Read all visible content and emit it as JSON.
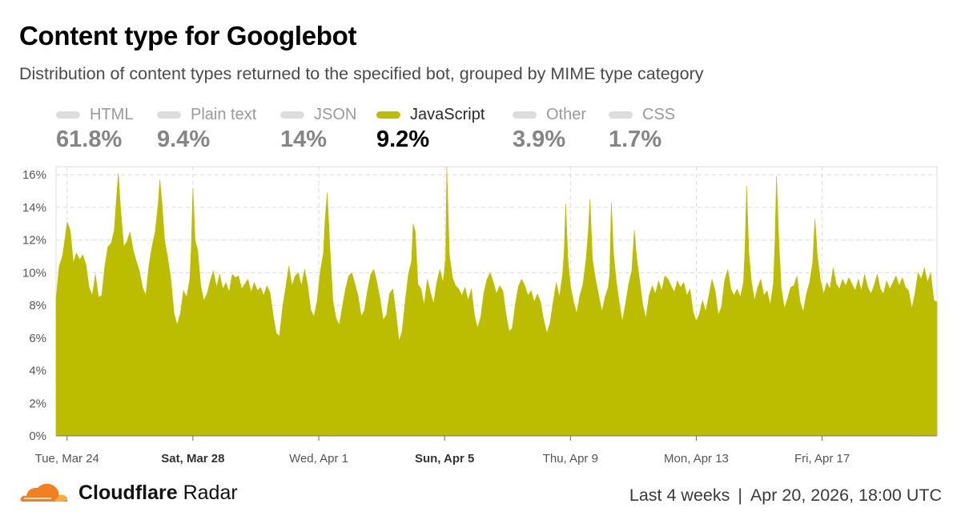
{
  "header": {
    "title": "Content type for Googlebot",
    "subtitle": "Distribution of content types returned to the specified bot, grouped by MIME type category"
  },
  "legend": [
    {
      "label": "HTML",
      "value": "61.8%",
      "active": false
    },
    {
      "label": "Plain text",
      "value": "9.4%",
      "active": false
    },
    {
      "label": "JSON",
      "value": "14%",
      "active": false
    },
    {
      "label": "JavaScript",
      "value": "9.2%",
      "active": true
    },
    {
      "label": "Other",
      "value": "3.9%",
      "active": false
    },
    {
      "label": "CSS",
      "value": "1.7%",
      "active": false
    }
  ],
  "colors": {
    "accent": "#bdbd00",
    "inactive": "#dddddd",
    "grid": "#dcdcdc",
    "logo": "#f38020"
  },
  "footer": {
    "brand_bold": "Cloudflare",
    "brand_light": "Radar",
    "range": "Last 4 weeks",
    "separator": "|",
    "timestamp": "Apr 20, 2026, 18:00 UTC"
  },
  "chart_data": {
    "type": "area",
    "series": [
      {
        "name": "JavaScript",
        "color": "#bdbd00"
      }
    ],
    "y_ticks": [
      "0%",
      "2%",
      "4%",
      "6%",
      "8%",
      "10%",
      "12%",
      "14%",
      "16%"
    ],
    "ylim": [
      0,
      16.5
    ],
    "x_ticks": [
      {
        "label": "Tue, Mar 24",
        "day": 0.35,
        "bold": false
      },
      {
        "label": "Sat, Mar 28",
        "day": 4.35,
        "bold": true
      },
      {
        "label": "Wed, Apr 1",
        "day": 8.35,
        "bold": false
      },
      {
        "label": "Sun, Apr 5",
        "day": 12.35,
        "bold": true
      },
      {
        "label": "Thu, Apr 9",
        "day": 16.35,
        "bold": false
      },
      {
        "label": "Mon, Apr 13",
        "day": 20.35,
        "bold": false
      },
      {
        "label": "Fri, Apr 17",
        "day": 24.35,
        "bold": false
      }
    ],
    "x_range_days": [
      0,
      28
    ],
    "points": [
      [
        0.0,
        8.4
      ],
      [
        0.1,
        10.4
      ],
      [
        0.2,
        11.0
      ],
      [
        0.3,
        12.3
      ],
      [
        0.35,
        13.1
      ],
      [
        0.45,
        12.6
      ],
      [
        0.55,
        10.6
      ],
      [
        0.65,
        11.2
      ],
      [
        0.75,
        10.8
      ],
      [
        0.85,
        11.1
      ],
      [
        0.95,
        10.5
      ],
      [
        1.05,
        9.1
      ],
      [
        1.15,
        8.6
      ],
      [
        1.25,
        9.9
      ],
      [
        1.35,
        8.5
      ],
      [
        1.45,
        8.6
      ],
      [
        1.55,
        10.4
      ],
      [
        1.65,
        11.6
      ],
      [
        1.75,
        11.8
      ],
      [
        1.85,
        12.6
      ],
      [
        1.92,
        14.5
      ],
      [
        1.98,
        16.1
      ],
      [
        2.05,
        14.0
      ],
      [
        2.15,
        11.6
      ],
      [
        2.25,
        11.9
      ],
      [
        2.35,
        12.5
      ],
      [
        2.45,
        11.4
      ],
      [
        2.55,
        10.7
      ],
      [
        2.65,
        10.1
      ],
      [
        2.75,
        9.1
      ],
      [
        2.85,
        8.6
      ],
      [
        2.95,
        10.4
      ],
      [
        3.05,
        11.6
      ],
      [
        3.15,
        12.5
      ],
      [
        3.25,
        14.3
      ],
      [
        3.3,
        15.7
      ],
      [
        3.37,
        14.2
      ],
      [
        3.45,
        12.0
      ],
      [
        3.55,
        10.9
      ],
      [
        3.65,
        9.6
      ],
      [
        3.75,
        7.5
      ],
      [
        3.85,
        6.8
      ],
      [
        3.95,
        7.5
      ],
      [
        4.05,
        8.9
      ],
      [
        4.15,
        8.5
      ],
      [
        4.25,
        9.6
      ],
      [
        4.3,
        11.6
      ],
      [
        4.35,
        15.2
      ],
      [
        4.42,
        12.0
      ],
      [
        4.5,
        11.4
      ],
      [
        4.6,
        9.2
      ],
      [
        4.7,
        8.3
      ],
      [
        4.8,
        8.7
      ],
      [
        4.9,
        9.5
      ],
      [
        5.0,
        10.1
      ],
      [
        5.1,
        9.1
      ],
      [
        5.2,
        9.9
      ],
      [
        5.3,
        9.0
      ],
      [
        5.4,
        9.4
      ],
      [
        5.5,
        8.8
      ],
      [
        5.6,
        9.9
      ],
      [
        5.7,
        9.7
      ],
      [
        5.8,
        9.8
      ],
      [
        5.9,
        9.0
      ],
      [
        6.0,
        9.3
      ],
      [
        6.1,
        9.6
      ],
      [
        6.2,
        8.8
      ],
      [
        6.3,
        9.4
      ],
      [
        6.4,
        8.9
      ],
      [
        6.5,
        9.1
      ],
      [
        6.6,
        8.6
      ],
      [
        6.7,
        9.2
      ],
      [
        6.8,
        8.8
      ],
      [
        6.9,
        7.4
      ],
      [
        7.0,
        6.3
      ],
      [
        7.1,
        6.1
      ],
      [
        7.2,
        7.9
      ],
      [
        7.3,
        9.1
      ],
      [
        7.4,
        10.4
      ],
      [
        7.5,
        9.2
      ],
      [
        7.6,
        9.8
      ],
      [
        7.7,
        10.0
      ],
      [
        7.8,
        9.2
      ],
      [
        7.9,
        10.2
      ],
      [
        8.0,
        9.2
      ],
      [
        8.1,
        7.7
      ],
      [
        8.2,
        7.3
      ],
      [
        8.3,
        8.3
      ],
      [
        8.4,
        10.1
      ],
      [
        8.5,
        11.2
      ],
      [
        8.55,
        13.2
      ],
      [
        8.62,
        14.9
      ],
      [
        8.7,
        11.7
      ],
      [
        8.8,
        8.3
      ],
      [
        8.9,
        7.2
      ],
      [
        9.0,
        6.8
      ],
      [
        9.1,
        7.9
      ],
      [
        9.2,
        9.0
      ],
      [
        9.3,
        9.8
      ],
      [
        9.4,
        10.0
      ],
      [
        9.5,
        9.3
      ],
      [
        9.6,
        8.6
      ],
      [
        9.7,
        7.3
      ],
      [
        9.8,
        7.7
      ],
      [
        9.9,
        8.9
      ],
      [
        10.0,
        9.9
      ],
      [
        10.1,
        10.2
      ],
      [
        10.2,
        9.4
      ],
      [
        10.3,
        8.4
      ],
      [
        10.4,
        7.1
      ],
      [
        10.5,
        7.4
      ],
      [
        10.6,
        8.7
      ],
      [
        10.7,
        9.0
      ],
      [
        10.8,
        7.6
      ],
      [
        10.9,
        5.8
      ],
      [
        11.0,
        6.4
      ],
      [
        11.1,
        8.3
      ],
      [
        11.2,
        9.9
      ],
      [
        11.3,
        10.7
      ],
      [
        11.35,
        13.0
      ],
      [
        11.42,
        12.5
      ],
      [
        11.5,
        9.3
      ],
      [
        11.6,
        9.0
      ],
      [
        11.7,
        8.0
      ],
      [
        11.8,
        9.6
      ],
      [
        11.9,
        8.8
      ],
      [
        12.0,
        8.1
      ],
      [
        12.1,
        9.4
      ],
      [
        12.2,
        10.2
      ],
      [
        12.3,
        9.4
      ],
      [
        12.38,
        10.8
      ],
      [
        12.42,
        16.5
      ],
      [
        12.5,
        11.1
      ],
      [
        12.6,
        9.7
      ],
      [
        12.7,
        9.2
      ],
      [
        12.8,
        9.0
      ],
      [
        12.9,
        8.6
      ],
      [
        13.0,
        9.1
      ],
      [
        13.1,
        8.3
      ],
      [
        13.2,
        9.0
      ],
      [
        13.3,
        7.4
      ],
      [
        13.4,
        6.6
      ],
      [
        13.5,
        7.3
      ],
      [
        13.6,
        8.8
      ],
      [
        13.7,
        9.6
      ],
      [
        13.8,
        10.0
      ],
      [
        13.9,
        9.4
      ],
      [
        14.0,
        8.7
      ],
      [
        14.1,
        9.2
      ],
      [
        14.2,
        8.9
      ],
      [
        14.3,
        7.5
      ],
      [
        14.4,
        6.4
      ],
      [
        14.5,
        6.6
      ],
      [
        14.6,
        8.1
      ],
      [
        14.7,
        9.2
      ],
      [
        14.8,
        9.6
      ],
      [
        14.9,
        9.2
      ],
      [
        15.0,
        8.6
      ],
      [
        15.1,
        8.9
      ],
      [
        15.2,
        8.2
      ],
      [
        15.3,
        8.7
      ],
      [
        15.4,
        8.2
      ],
      [
        15.5,
        7.1
      ],
      [
        15.6,
        6.3
      ],
      [
        15.7,
        6.9
      ],
      [
        15.8,
        8.2
      ],
      [
        15.9,
        9.4
      ],
      [
        16.0,
        8.5
      ],
      [
        16.1,
        9.9
      ],
      [
        16.15,
        11.3
      ],
      [
        16.2,
        14.2
      ],
      [
        16.27,
        10.8
      ],
      [
        16.35,
        9.2
      ],
      [
        16.45,
        8.2
      ],
      [
        16.55,
        7.5
      ],
      [
        16.65,
        8.6
      ],
      [
        16.75,
        9.3
      ],
      [
        16.85,
        10.9
      ],
      [
        16.92,
        12.6
      ],
      [
        16.97,
        14.5
      ],
      [
        17.05,
        10.8
      ],
      [
        17.15,
        9.6
      ],
      [
        17.25,
        8.6
      ],
      [
        17.35,
        7.6
      ],
      [
        17.45,
        8.5
      ],
      [
        17.55,
        9.1
      ],
      [
        17.6,
        9.9
      ],
      [
        17.65,
        14.3
      ],
      [
        17.72,
        11.2
      ],
      [
        17.8,
        9.6
      ],
      [
        17.9,
        8.2
      ],
      [
        18.0,
        7.0
      ],
      [
        18.1,
        8.1
      ],
      [
        18.2,
        9.3
      ],
      [
        18.3,
        10.1
      ],
      [
        18.38,
        12.6
      ],
      [
        18.45,
        11.0
      ],
      [
        18.55,
        9.5
      ],
      [
        18.65,
        8.0
      ],
      [
        18.75,
        7.2
      ],
      [
        18.85,
        8.6
      ],
      [
        18.95,
        9.2
      ],
      [
        19.05,
        8.7
      ],
      [
        19.15,
        9.5
      ],
      [
        19.25,
        8.9
      ],
      [
        19.35,
        9.8
      ],
      [
        19.45,
        9.6
      ],
      [
        19.55,
        9.2
      ],
      [
        19.65,
        8.8
      ],
      [
        19.75,
        9.5
      ],
      [
        19.85,
        9.1
      ],
      [
        19.95,
        9.4
      ],
      [
        20.05,
        8.6
      ],
      [
        20.15,
        9.0
      ],
      [
        20.25,
        7.6
      ],
      [
        20.35,
        7.0
      ],
      [
        20.45,
        7.5
      ],
      [
        20.55,
        8.3
      ],
      [
        20.65,
        7.6
      ],
      [
        20.75,
        8.6
      ],
      [
        20.85,
        9.6
      ],
      [
        20.95,
        8.9
      ],
      [
        21.05,
        7.4
      ],
      [
        21.15,
        7.9
      ],
      [
        21.25,
        9.5
      ],
      [
        21.35,
        10.2
      ],
      [
        21.45,
        9.0
      ],
      [
        21.55,
        8.6
      ],
      [
        21.65,
        9.0
      ],
      [
        21.75,
        8.5
      ],
      [
        21.85,
        9.4
      ],
      [
        21.9,
        11.6
      ],
      [
        21.95,
        15.3
      ],
      [
        22.02,
        11.2
      ],
      [
        22.1,
        9.5
      ],
      [
        22.2,
        8.3
      ],
      [
        22.3,
        9.1
      ],
      [
        22.4,
        9.6
      ],
      [
        22.5,
        8.6
      ],
      [
        22.6,
        8.9
      ],
      [
        22.7,
        8.0
      ],
      [
        22.8,
        9.3
      ],
      [
        22.85,
        11.9
      ],
      [
        22.9,
        15.9
      ],
      [
        22.97,
        12.1
      ],
      [
        23.05,
        9.1
      ],
      [
        23.15,
        7.8
      ],
      [
        23.25,
        8.4
      ],
      [
        23.35,
        9.1
      ],
      [
        23.45,
        9.2
      ],
      [
        23.55,
        9.8
      ],
      [
        23.65,
        8.2
      ],
      [
        23.75,
        7.6
      ],
      [
        23.85,
        8.7
      ],
      [
        23.95,
        9.4
      ],
      [
        24.05,
        10.6
      ],
      [
        24.12,
        13.3
      ],
      [
        24.2,
        11.0
      ],
      [
        24.3,
        9.5
      ],
      [
        24.4,
        8.7
      ],
      [
        24.5,
        9.4
      ],
      [
        24.6,
        9.0
      ],
      [
        24.7,
        10.3
      ],
      [
        24.8,
        9.3
      ],
      [
        24.9,
        9.0
      ],
      [
        25.0,
        9.6
      ],
      [
        25.1,
        9.2
      ],
      [
        25.2,
        9.7
      ],
      [
        25.3,
        9.3
      ],
      [
        25.4,
        8.9
      ],
      [
        25.5,
        9.6
      ],
      [
        25.6,
        8.9
      ],
      [
        25.7,
        9.9
      ],
      [
        25.8,
        9.1
      ],
      [
        25.9,
        8.7
      ],
      [
        26.0,
        9.2
      ],
      [
        26.1,
        9.9
      ],
      [
        26.2,
        9.0
      ],
      [
        26.3,
        8.7
      ],
      [
        26.4,
        9.5
      ],
      [
        26.5,
        9.0
      ],
      [
        26.6,
        9.4
      ],
      [
        26.7,
        9.8
      ],
      [
        26.8,
        9.2
      ],
      [
        26.9,
        9.7
      ],
      [
        27.0,
        9.1
      ],
      [
        27.1,
        8.9
      ],
      [
        27.2,
        7.8
      ],
      [
        27.3,
        8.7
      ],
      [
        27.4,
        10.0
      ],
      [
        27.5,
        9.6
      ],
      [
        27.6,
        10.3
      ],
      [
        27.7,
        9.4
      ],
      [
        27.8,
        10.0
      ],
      [
        27.9,
        8.3
      ],
      [
        28.0,
        8.2
      ]
    ]
  }
}
